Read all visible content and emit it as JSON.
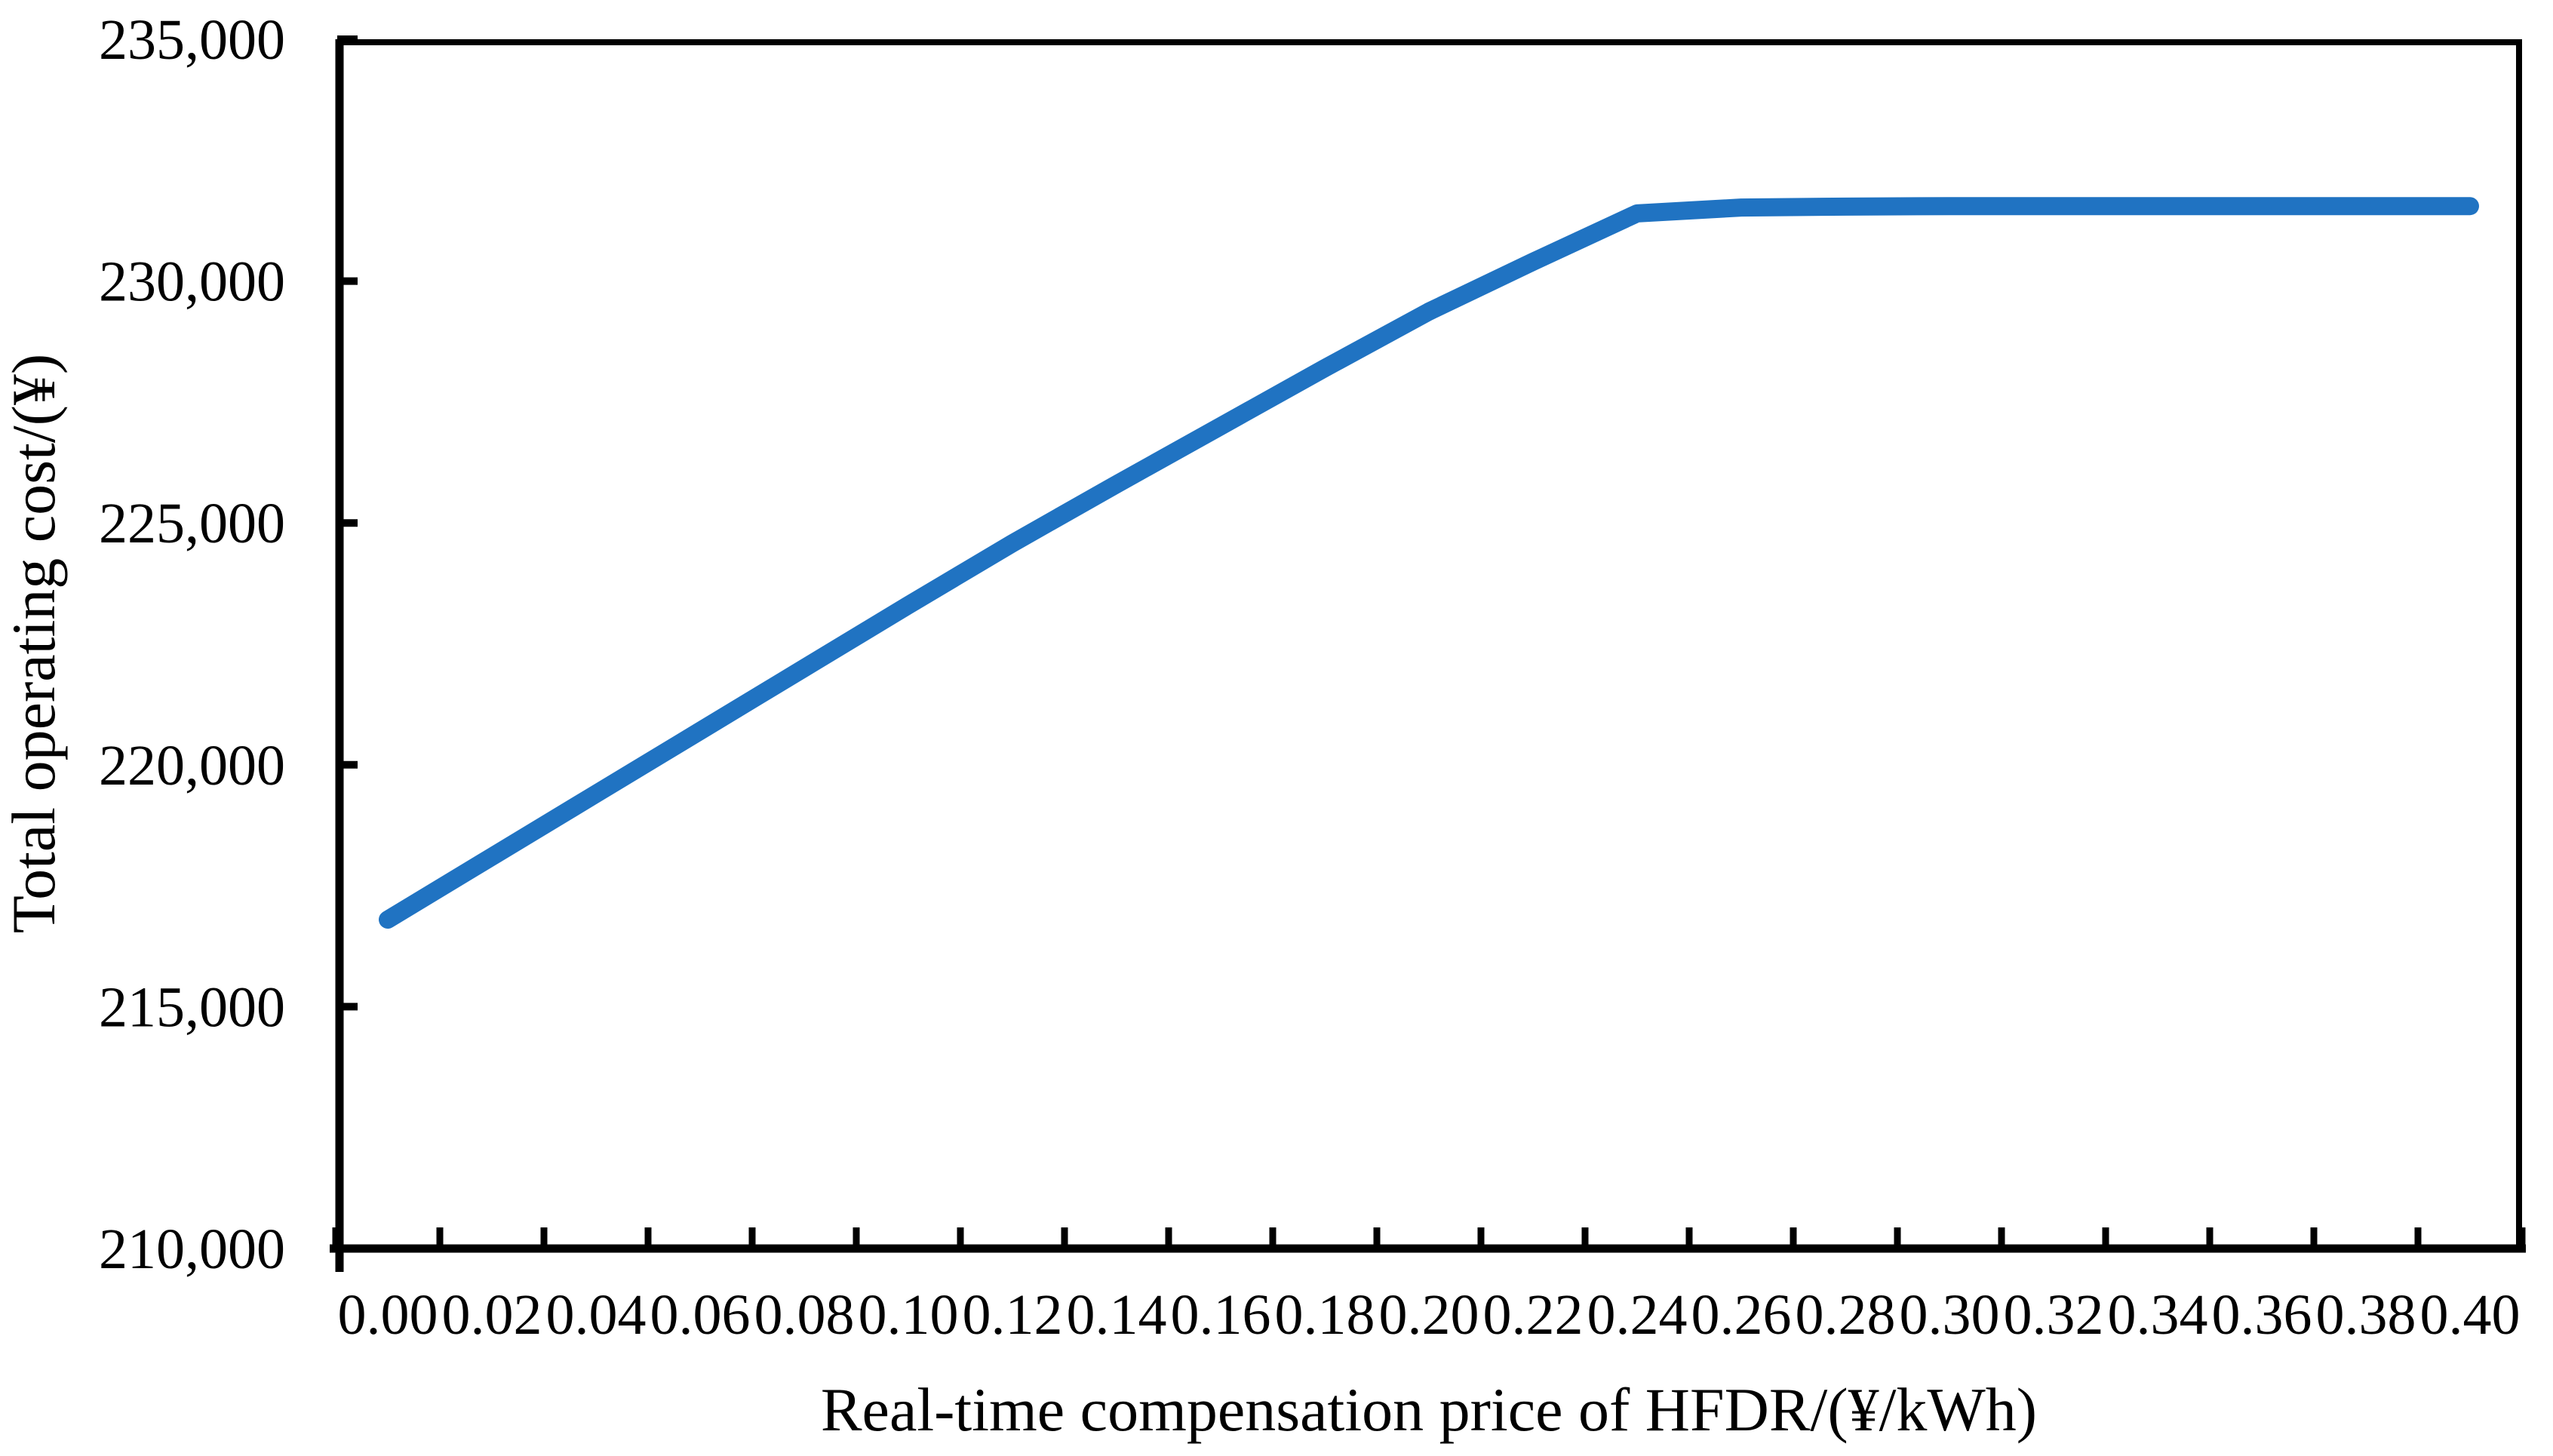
{
  "chart_data": {
    "type": "line",
    "title": "",
    "xlabel": "Real-time compensation price of HFDR/(¥/kWh)",
    "ylabel": "Total operating cost/(¥)",
    "categories": [
      "0.00",
      "0.02",
      "0.04",
      "0.06",
      "0.08",
      "0.10",
      "0.12",
      "0.14",
      "0.16",
      "0.18",
      "0.20",
      "0.22",
      "0.24",
      "0.26",
      "0.28",
      "0.30",
      "0.32",
      "0.34",
      "0.36",
      "0.38",
      "0.40"
    ],
    "series": [
      {
        "name": "Total operating cost",
        "color": "#2073C2",
        "values": [
          216800,
          218100,
          219400,
          220700,
          222000,
          223300,
          224580,
          225800,
          227000,
          228200,
          229370,
          230400,
          231400,
          231520,
          231540,
          231550,
          231550,
          231550,
          231550,
          231550,
          231550
        ]
      }
    ],
    "ylim": [
      210000,
      235000
    ],
    "y_major_unit": 5000,
    "y_tick_labels": [
      "210,000",
      "215,000",
      "220,000",
      "225,000",
      "230,000",
      "235,000"
    ],
    "x_tick_interval": 0.02,
    "grid": "off",
    "legend": "none",
    "axis_color": "#000000",
    "background_color": "#ffffff"
  }
}
